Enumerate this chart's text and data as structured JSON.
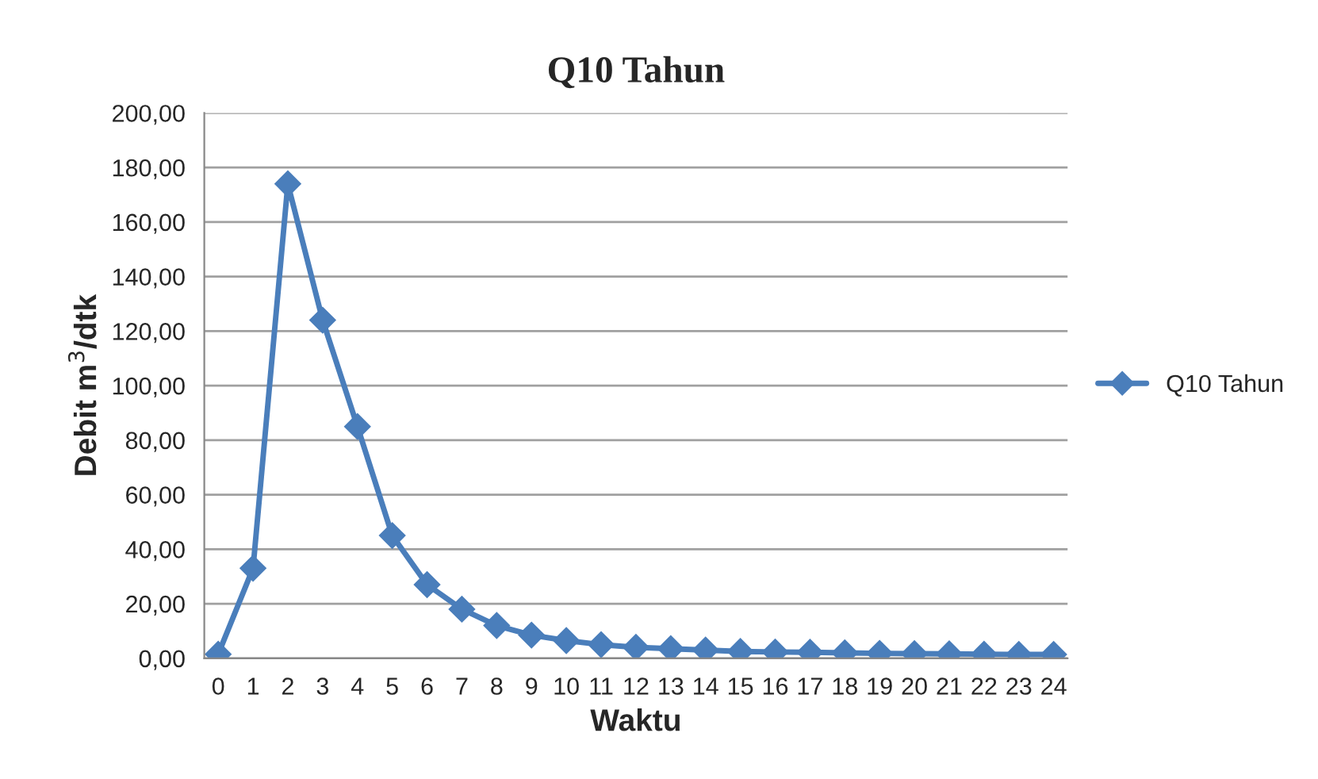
{
  "chart_data": {
    "type": "line",
    "title": "Q10 Tahun",
    "xlabel": "Waktu",
    "ylabel": "Debit m$^{3}$/dtk",
    "categories": [
      "0",
      "1",
      "2",
      "3",
      "4",
      "5",
      "6",
      "7",
      "8",
      "9",
      "10",
      "11",
      "12",
      "13",
      "14",
      "15",
      "16",
      "17",
      "18",
      "19",
      "20",
      "21",
      "22",
      "23",
      "24"
    ],
    "series": [
      {
        "name": "Q10 Tahun",
        "color": "#4a7ebb",
        "values": [
          1.5,
          33,
          174,
          124,
          85,
          45,
          27,
          18,
          12,
          8.5,
          6.5,
          5,
          4,
          3.5,
          3,
          2.5,
          2.3,
          2.2,
          2,
          1.8,
          1.7,
          1.6,
          1.5,
          1.4,
          1.4
        ]
      }
    ],
    "ylim": [
      0,
      200
    ],
    "yticks": [
      {
        "value": 0,
        "label": "0,00"
      },
      {
        "value": 20,
        "label": "20,00"
      },
      {
        "value": 40,
        "label": "40,00"
      },
      {
        "value": 60,
        "label": "60,00"
      },
      {
        "value": 80,
        "label": "80,00"
      },
      {
        "value": 100,
        "label": "100,00"
      },
      {
        "value": 120,
        "label": "120,00"
      },
      {
        "value": 140,
        "label": "140,00"
      },
      {
        "value": 160,
        "label": "160,00"
      },
      {
        "value": 180,
        "label": "180,00"
      },
      {
        "value": 200,
        "label": "200,00"
      }
    ],
    "grid": "y",
    "legend": "right",
    "marker": "diamond",
    "line_style": "solid"
  }
}
